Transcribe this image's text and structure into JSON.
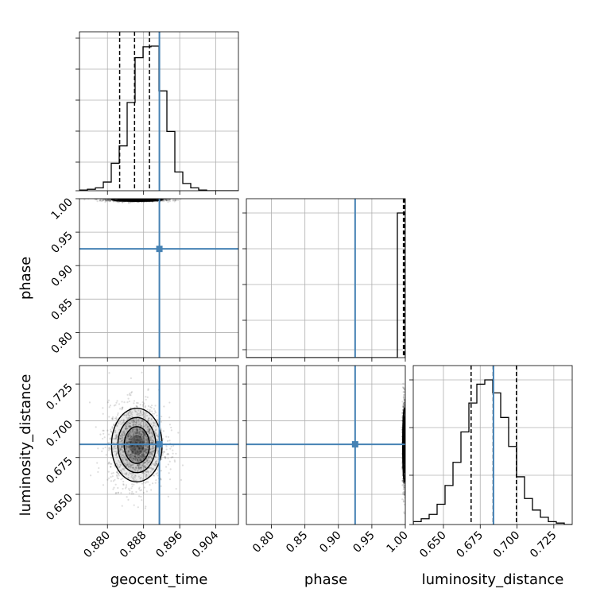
{
  "chart_data": {
    "type": "corner",
    "parameters": [
      "geocent_time",
      "phase",
      "luminosity_distance"
    ],
    "truths": {
      "geocent_time": 0.8915,
      "phase": 0.925,
      "luminosity_distance": 0.684
    },
    "truth_color": "#4682b4",
    "ranges": {
      "geocent_time": [
        0.8738,
        0.909
      ],
      "phase": [
        0.7625,
        1.0
      ],
      "luminosity_distance": [
        0.6295,
        0.7375
      ]
    },
    "ticks": {
      "geocent_time": [
        "0.880",
        "0.888",
        "0.896",
        "0.904"
      ],
      "phase": [
        "0.80",
        "0.85",
        "0.90",
        "0.95",
        "1.00"
      ],
      "luminosity_distance": [
        "0.650",
        "0.675",
        "0.700",
        "0.725"
      ]
    },
    "quantiles": {
      "geocent_time": [
        0.8827,
        0.886,
        0.8893
      ],
      "phase": [
        0.9972,
        0.9989,
        0.9998
      ],
      "luminosity_distance": [
        0.6688,
        0.6838,
        0.6996
      ]
    },
    "histograms": {
      "geocent_time": {
        "bin_start": 0.8738,
        "bin_width": 0.00176,
        "counts": [
          0.005,
          0.01,
          0.02,
          0.06,
          0.19,
          0.31,
          0.61,
          0.92,
          0.995,
          1.0,
          0.69,
          0.41,
          0.13,
          0.05,
          0.02,
          0.005,
          0.0,
          0.0,
          0.0,
          0.0
        ]
      },
      "phase": {
        "bin_start": 0.7625,
        "bin_width": 0.011875,
        "counts": [
          0,
          0,
          0,
          0,
          0,
          0,
          0,
          0,
          0,
          0,
          0,
          0,
          0,
          0,
          0,
          0,
          0,
          0,
          0,
          1.0
        ]
      },
      "luminosity_distance": {
        "bin_start": 0.6295,
        "bin_width": 0.0054,
        "counts": [
          0.02,
          0.04,
          0.07,
          0.14,
          0.27,
          0.43,
          0.64,
          0.84,
          0.97,
          1.0,
          0.91,
          0.74,
          0.54,
          0.33,
          0.18,
          0.1,
          0.05,
          0.02,
          0.01,
          0.0
        ]
      }
    },
    "posterior_2d": {
      "geocent_time_vs_luminosity_distance": {
        "mean": [
          0.8865,
          0.6835
        ],
        "sd": [
          0.0028,
          0.0125
        ]
      },
      "phase_vs_luminosity_distance": {
        "mean": [
          0.9985,
          0.6835
        ],
        "sd": [
          0.0012,
          0.0125
        ]
      },
      "geocent_time_vs_phase": {
        "mean": [
          0.8865,
          0.9985
        ],
        "sd": [
          0.0028,
          0.0012
        ]
      }
    },
    "grid": true
  }
}
